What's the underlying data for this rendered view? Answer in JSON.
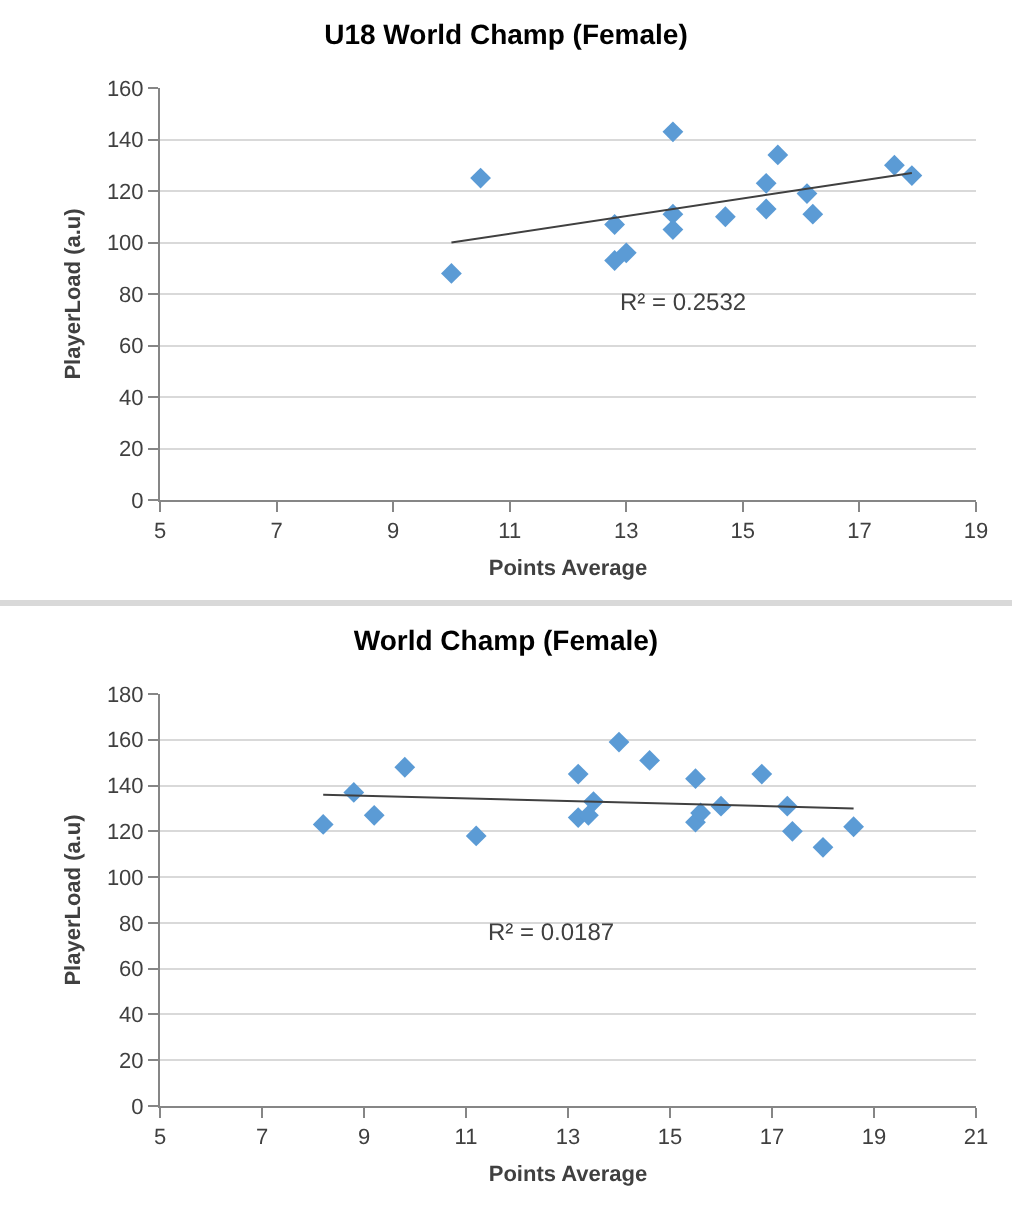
{
  "chart_data": [
    {
      "type": "scatter",
      "title": "U18 World Champ (Female)",
      "xlabel": "Points Average",
      "ylabel": "PlayerLoad (a.u)",
      "xlim": [
        5,
        19
      ],
      "xticks": [
        5,
        7,
        9,
        11,
        13,
        15,
        17,
        19
      ],
      "ylim": [
        0,
        160
      ],
      "yticks": [
        0,
        20,
        40,
        60,
        80,
        100,
        120,
        140,
        160
      ],
      "grid": "y",
      "marker": "diamond",
      "annotations": [
        "R² = 0.2532"
      ],
      "series": [
        {
          "color": "#5b9bd5",
          "x": [
            10,
            10.5,
            12.8,
            12.8,
            13,
            13.8,
            13.8,
            13.8,
            14.7,
            15.4,
            15.4,
            15.6,
            16.1,
            16.2,
            17.6,
            17.9
          ],
          "values": [
            88,
            125,
            93,
            107,
            96,
            143,
            111,
            105,
            110,
            123,
            113,
            134,
            119,
            111,
            130,
            126
          ]
        },
        {
          "type": "line",
          "color": "#404040",
          "marker": "none",
          "x": [
            10,
            17.9
          ],
          "values": [
            100,
            127
          ]
        }
      ]
    },
    {
      "type": "scatter",
      "title": "World Champ (Female)",
      "xlabel": "Points Average",
      "ylabel": "PlayerLoad (a.u)",
      "xlim": [
        5,
        21
      ],
      "xticks": [
        5,
        7,
        9,
        11,
        13,
        15,
        17,
        19,
        21
      ],
      "ylim": [
        0,
        180
      ],
      "yticks": [
        0,
        20,
        40,
        60,
        80,
        100,
        120,
        140,
        160,
        180
      ],
      "grid": "y",
      "marker": "diamond",
      "annotations": [
        "R² = 0.0187"
      ],
      "series": [
        {
          "color": "#5b9bd5",
          "x": [
            8.2,
            8.8,
            9.2,
            9.8,
            11.2,
            13.2,
            13.2,
            13.4,
            13.5,
            14,
            14.6,
            15.5,
            15.5,
            15.6,
            16,
            16.8,
            17.3,
            17.4,
            18,
            18.6
          ],
          "values": [
            123,
            137,
            127,
            148,
            118,
            145,
            126,
            127,
            133,
            159,
            151,
            143,
            124,
            128,
            131,
            145,
            131,
            120,
            113,
            122
          ]
        },
        {
          "type": "line",
          "color": "#404040",
          "marker": "none",
          "x": [
            8.2,
            18.6
          ],
          "values": [
            136,
            130
          ]
        }
      ]
    }
  ]
}
